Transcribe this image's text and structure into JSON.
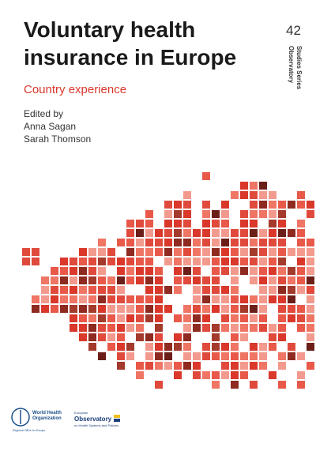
{
  "cover": {
    "title_lines": [
      "Voluntary health",
      "insurance in Europe"
    ],
    "subtitle": "Country experience",
    "editors_intro": "Edited by",
    "editors": [
      "Anna Sagan",
      "Sarah Thomson"
    ],
    "series_number": "42",
    "series_name": [
      "Observatory",
      "Studies Series"
    ],
    "who_logo": [
      "World Health",
      "Organization",
      "Regional Office for Europe"
    ],
    "observatory_logo": [
      "European",
      "Observatory",
      "on Health Systems and Policies"
    ]
  }
}
